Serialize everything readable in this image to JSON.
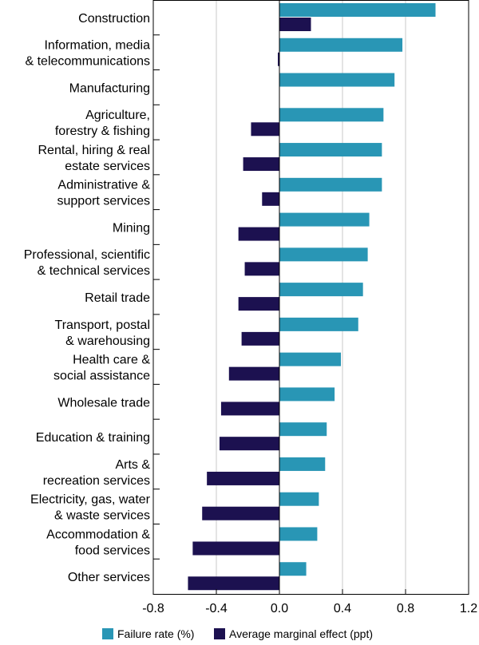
{
  "chart_data": {
    "type": "bar",
    "orientation": "horizontal",
    "categories": [
      [
        "Construction"
      ],
      [
        "Information, media",
        "& telecommunications"
      ],
      [
        "Manufacturing"
      ],
      [
        "Agriculture,",
        "forestry & fishing"
      ],
      [
        "Rental, hiring & real",
        "estate services"
      ],
      [
        "Administrative &",
        "support services"
      ],
      [
        "Mining"
      ],
      [
        "Professional, scientific",
        "& technical services"
      ],
      [
        "Retail trade"
      ],
      [
        "Transport, postal",
        "& warehousing"
      ],
      [
        "Health care &",
        "social assistance"
      ],
      [
        "Wholesale trade"
      ],
      [
        "Education & training"
      ],
      [
        "Arts &",
        "recreation services"
      ],
      [
        "Electricity, gas, water",
        "& waste services"
      ],
      [
        "Accommodation &",
        "food services"
      ],
      [
        "Other services"
      ]
    ],
    "series": [
      {
        "name": "Failure rate (%)",
        "color": "#2996b5",
        "values": [
          0.99,
          0.78,
          0.73,
          0.66,
          0.65,
          0.65,
          0.57,
          0.56,
          0.53,
          0.5,
          0.39,
          0.35,
          0.3,
          0.29,
          0.25,
          0.24,
          0.17
        ]
      },
      {
        "name": "Average marginal effect (ppt)",
        "color": "#1c1150",
        "values": [
          0.2,
          -0.01,
          0.0,
          -0.18,
          -0.23,
          -0.11,
          -0.26,
          -0.22,
          -0.26,
          -0.24,
          -0.32,
          -0.37,
          -0.38,
          -0.46,
          -0.49,
          -0.55,
          -0.58
        ]
      }
    ],
    "xlim": [
      -0.8,
      1.2
    ],
    "xticks": [
      "-0.8",
      "-0.4",
      "0.0",
      "0.4",
      "0.8",
      "1.2"
    ],
    "xtick_values": [
      -0.8,
      -0.4,
      0.0,
      0.4,
      0.8,
      1.2
    ],
    "grid": "vertical",
    "legend": "bottom"
  }
}
